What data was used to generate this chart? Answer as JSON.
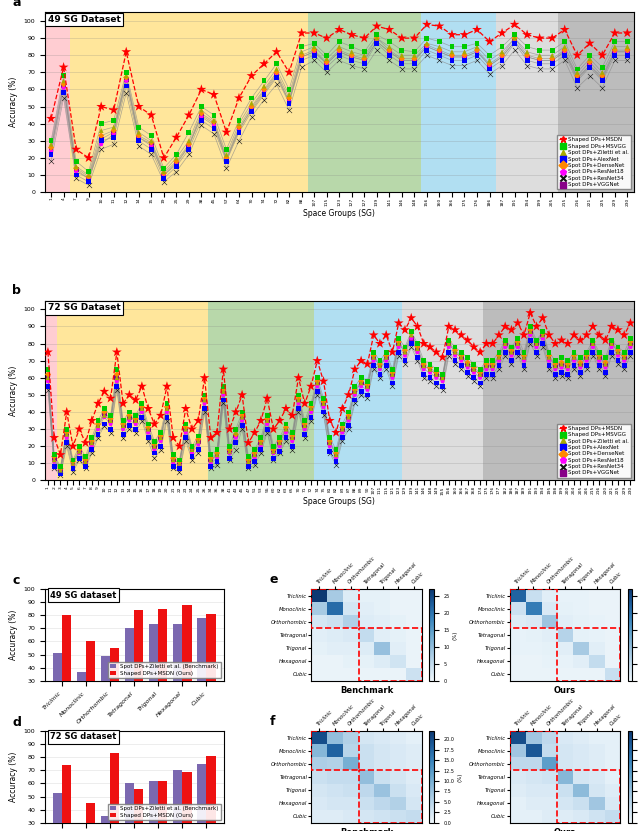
{
  "sg49_labels": [
    "1",
    "4",
    "7",
    "9",
    "10",
    "11",
    "12",
    "14",
    "15",
    "19",
    "25",
    "29",
    "38",
    "45",
    "57",
    "64",
    "70",
    "74",
    "72",
    "82",
    "88",
    "107",
    "115",
    "123",
    "127",
    "127",
    "139",
    "141",
    "146",
    "148",
    "156",
    "160",
    "166",
    "175",
    "176",
    "186",
    "187",
    "191",
    "194",
    "199",
    "205",
    "215",
    "216",
    "221",
    "225",
    "229",
    "230"
  ],
  "sg49_msdn": [
    43,
    73,
    25,
    20,
    50,
    48,
    82,
    50,
    45,
    20,
    32,
    45,
    60,
    57,
    35,
    55,
    68,
    75,
    82,
    70,
    93,
    93,
    90,
    95,
    92,
    90,
    97,
    95,
    90,
    90,
    98,
    97,
    92,
    92,
    95,
    88,
    93,
    98,
    92,
    90,
    90,
    95,
    80,
    87,
    80,
    93,
    93
  ],
  "sg49_msvgg": [
    30,
    68,
    18,
    12,
    40,
    42,
    70,
    38,
    33,
    14,
    22,
    35,
    50,
    45,
    25,
    42,
    55,
    65,
    75,
    60,
    85,
    87,
    80,
    88,
    85,
    82,
    92,
    88,
    83,
    82,
    90,
    88,
    85,
    85,
    87,
    80,
    85,
    92,
    85,
    83,
    83,
    88,
    72,
    80,
    73,
    88,
    88
  ],
  "sg49_ziletti": [
    28,
    65,
    15,
    10,
    36,
    38,
    68,
    35,
    30,
    12,
    20,
    30,
    48,
    42,
    22,
    40,
    52,
    62,
    72,
    57,
    82,
    85,
    78,
    85,
    82,
    80,
    90,
    85,
    80,
    80,
    87,
    85,
    82,
    82,
    85,
    77,
    82,
    90,
    82,
    80,
    80,
    85,
    70,
    78,
    70,
    85,
    85
  ],
  "sg49_alexnet": [
    22,
    58,
    10,
    6,
    30,
    32,
    62,
    30,
    25,
    8,
    15,
    25,
    42,
    37,
    18,
    35,
    47,
    57,
    67,
    52,
    77,
    80,
    73,
    80,
    77,
    75,
    87,
    80,
    75,
    75,
    83,
    80,
    77,
    77,
    80,
    72,
    77,
    87,
    77,
    75,
    75,
    80,
    65,
    73,
    65,
    80,
    80
  ],
  "sg49_densenet": [
    26,
    63,
    14,
    9,
    33,
    36,
    67,
    33,
    29,
    11,
    18,
    28,
    46,
    41,
    20,
    38,
    50,
    60,
    70,
    55,
    80,
    83,
    76,
    83,
    80,
    78,
    90,
    83,
    78,
    78,
    86,
    83,
    80,
    80,
    83,
    75,
    80,
    90,
    80,
    78,
    78,
    83,
    68,
    76,
    68,
    83,
    83
  ],
  "sg49_resnet18": [
    24,
    61,
    12,
    8,
    28,
    34,
    65,
    32,
    27,
    10,
    16,
    27,
    44,
    39,
    19,
    36,
    49,
    59,
    69,
    53,
    79,
    82,
    75,
    82,
    79,
    77,
    88,
    82,
    77,
    77,
    85,
    82,
    79,
    79,
    82,
    74,
    79,
    88,
    79,
    77,
    77,
    82,
    66,
    74,
    66,
    82,
    82
  ],
  "sg49_resnet34": [
    18,
    55,
    8,
    4,
    25,
    28,
    58,
    27,
    22,
    6,
    12,
    22,
    39,
    34,
    14,
    30,
    44,
    54,
    63,
    48,
    73,
    77,
    70,
    77,
    74,
    72,
    83,
    77,
    72,
    72,
    80,
    77,
    74,
    74,
    77,
    69,
    74,
    83,
    74,
    72,
    72,
    77,
    61,
    68,
    61,
    77,
    77
  ],
  "sg49_vggnet": [
    25,
    62,
    13,
    8,
    31,
    35,
    66,
    32,
    28,
    10,
    17,
    27,
    45,
    40,
    19,
    37,
    48,
    58,
    68,
    53,
    79,
    82,
    75,
    82,
    79,
    77,
    88,
    82,
    77,
    77,
    85,
    82,
    79,
    79,
    82,
    74,
    79,
    88,
    79,
    77,
    77,
    82,
    67,
    74,
    67,
    82,
    82
  ],
  "sg72_labels": [
    "1",
    "2",
    "3",
    "4",
    "5",
    "6",
    "7",
    "8",
    "9",
    "10",
    "11",
    "12",
    "13",
    "14",
    "15",
    "16",
    "17",
    "18",
    "19",
    "20",
    "21",
    "22",
    "23",
    "24",
    "25",
    "26",
    "34",
    "36",
    "38",
    "41",
    "43",
    "45",
    "47",
    "51",
    "53",
    "55",
    "60",
    "62",
    "63",
    "65",
    "70",
    "71",
    "72",
    "74",
    "75",
    "81",
    "82",
    "83",
    "87",
    "88",
    "89",
    "90",
    "107",
    "111",
    "115",
    "121",
    "123",
    "129",
    "139",
    "141",
    "146",
    "148",
    "149",
    "155",
    "156",
    "160",
    "166",
    "167",
    "168",
    "174",
    "175",
    "176",
    "177",
    "182",
    "186",
    "187",
    "189",
    "191",
    "193",
    "194",
    "195",
    "198",
    "199",
    "200",
    "204",
    "205",
    "206",
    "215",
    "216",
    "220",
    "221",
    "225",
    "229",
    "230"
  ],
  "sg72_msdn": [
    75,
    25,
    15,
    40,
    20,
    30,
    22,
    35,
    45,
    52,
    48,
    75,
    45,
    50,
    47,
    55,
    42,
    33,
    38,
    55,
    25,
    20,
    42,
    30,
    35,
    60,
    25,
    28,
    65,
    30,
    40,
    50,
    22,
    28,
    35,
    48,
    30,
    35,
    42,
    38,
    60,
    45,
    55,
    70,
    58,
    35,
    28,
    42,
    50,
    65,
    70,
    68,
    85,
    80,
    85,
    75,
    92,
    88,
    95,
    90,
    80,
    78,
    75,
    72,
    90,
    88,
    85,
    82,
    78,
    75,
    80,
    80,
    85,
    90,
    88,
    92,
    85,
    98,
    90,
    95,
    85,
    80,
    82,
    80,
    85,
    82,
    85,
    90,
    85,
    82,
    90,
    88,
    85,
    92
  ],
  "sg72_msvgg": [
    65,
    15,
    8,
    30,
    12,
    20,
    14,
    25,
    35,
    42,
    38,
    65,
    35,
    40,
    38,
    45,
    33,
    23,
    28,
    45,
    15,
    12,
    33,
    20,
    26,
    50,
    15,
    18,
    55,
    20,
    30,
    40,
    14,
    18,
    25,
    38,
    20,
    25,
    33,
    28,
    50,
    35,
    45,
    60,
    48,
    25,
    18,
    33,
    40,
    55,
    60,
    58,
    75,
    70,
    75,
    65,
    83,
    78,
    87,
    80,
    70,
    68,
    65,
    62,
    82,
    78,
    75,
    72,
    68,
    65,
    70,
    70,
    75,
    82,
    78,
    83,
    75,
    90,
    82,
    87,
    75,
    70,
    72,
    70,
    75,
    72,
    75,
    82,
    75,
    72,
    82,
    78,
    75,
    83
  ],
  "sg72_ziletti": [
    60,
    12,
    6,
    27,
    10,
    17,
    11,
    22,
    32,
    38,
    35,
    60,
    32,
    37,
    35,
    42,
    30,
    20,
    25,
    42,
    12,
    10,
    30,
    18,
    23,
    47,
    12,
    15,
    52,
    17,
    28,
    37,
    11,
    15,
    22,
    35,
    17,
    22,
    30,
    25,
    47,
    32,
    42,
    57,
    45,
    22,
    15,
    30,
    37,
    52,
    57,
    55,
    72,
    67,
    72,
    62,
    80,
    75,
    85,
    77,
    67,
    65,
    62,
    60,
    80,
    75,
    72,
    68,
    65,
    62,
    67,
    67,
    72,
    80,
    75,
    80,
    72,
    87,
    80,
    85,
    72,
    67,
    68,
    67,
    72,
    68,
    72,
    80,
    72,
    68,
    80,
    75,
    72,
    80
  ],
  "sg72_alexnet": [
    55,
    8,
    4,
    22,
    7,
    13,
    8,
    18,
    27,
    33,
    30,
    55,
    27,
    32,
    30,
    37,
    25,
    16,
    20,
    37,
    8,
    7,
    25,
    14,
    18,
    42,
    8,
    11,
    47,
    13,
    22,
    32,
    8,
    11,
    18,
    30,
    13,
    17,
    25,
    20,
    42,
    27,
    37,
    52,
    40,
    17,
    11,
    25,
    32,
    47,
    52,
    50,
    67,
    62,
    67,
    57,
    75,
    70,
    80,
    72,
    62,
    60,
    57,
    55,
    75,
    70,
    67,
    63,
    60,
    57,
    62,
    62,
    67,
    75,
    70,
    75,
    67,
    82,
    75,
    80,
    67,
    62,
    63,
    62,
    67,
    63,
    67,
    75,
    67,
    63,
    75,
    70,
    67,
    75
  ],
  "sg72_densenet": [
    62,
    14,
    7,
    28,
    11,
    18,
    12,
    23,
    33,
    40,
    36,
    62,
    33,
    38,
    36,
    43,
    31,
    21,
    26,
    43,
    13,
    11,
    31,
    19,
    24,
    48,
    13,
    16,
    53,
    18,
    27,
    38,
    12,
    16,
    23,
    36,
    18,
    23,
    31,
    26,
    48,
    33,
    43,
    58,
    46,
    23,
    16,
    31,
    38,
    53,
    58,
    56,
    73,
    68,
    73,
    63,
    81,
    76,
    86,
    78,
    68,
    66,
    63,
    61,
    81,
    76,
    73,
    69,
    66,
    63,
    68,
    68,
    73,
    81,
    76,
    81,
    73,
    88,
    81,
    86,
    73,
    68,
    69,
    68,
    73,
    69,
    73,
    81,
    73,
    69,
    81,
    76,
    73,
    81
  ],
  "sg72_resnet18": [
    58,
    11,
    5,
    25,
    9,
    16,
    10,
    20,
    30,
    37,
    33,
    58,
    30,
    35,
    33,
    40,
    28,
    18,
    23,
    40,
    10,
    9,
    28,
    16,
    21,
    45,
    10,
    13,
    50,
    16,
    25,
    35,
    10,
    13,
    20,
    33,
    16,
    20,
    28,
    23,
    45,
    30,
    40,
    55,
    43,
    20,
    13,
    28,
    35,
    50,
    55,
    53,
    70,
    65,
    70,
    60,
    78,
    73,
    83,
    75,
    65,
    63,
    60,
    58,
    78,
    73,
    70,
    66,
    63,
    60,
    65,
    65,
    70,
    78,
    73,
    78,
    70,
    85,
    78,
    83,
    70,
    65,
    66,
    65,
    70,
    66,
    70,
    78,
    70,
    66,
    78,
    73,
    70,
    78
  ],
  "sg72_resnet34": [
    53,
    7,
    3,
    20,
    5,
    12,
    7,
    16,
    25,
    32,
    28,
    53,
    25,
    30,
    28,
    35,
    23,
    13,
    18,
    35,
    7,
    5,
    23,
    12,
    16,
    40,
    7,
    9,
    45,
    12,
    18,
    30,
    7,
    9,
    16,
    28,
    12,
    16,
    23,
    18,
    40,
    25,
    35,
    50,
    38,
    16,
    9,
    23,
    30,
    45,
    50,
    48,
    65,
    60,
    65,
    55,
    73,
    68,
    78,
    70,
    60,
    58,
    55,
    53,
    73,
    68,
    65,
    61,
    58,
    55,
    60,
    60,
    65,
    73,
    68,
    73,
    65,
    80,
    73,
    78,
    65,
    60,
    61,
    60,
    65,
    61,
    65,
    73,
    65,
    61,
    73,
    68,
    65,
    73
  ],
  "sg72_vggnet": [
    60,
    13,
    6,
    27,
    10,
    17,
    11,
    22,
    32,
    39,
    35,
    60,
    32,
    37,
    35,
    42,
    30,
    20,
    25,
    42,
    12,
    10,
    30,
    18,
    23,
    47,
    12,
    15,
    52,
    17,
    26,
    37,
    11,
    15,
    22,
    35,
    17,
    22,
    30,
    25,
    47,
    32,
    42,
    57,
    45,
    22,
    15,
    30,
    37,
    52,
    57,
    55,
    72,
    67,
    72,
    62,
    80,
    75,
    83,
    77,
    67,
    65,
    62,
    60,
    80,
    75,
    72,
    68,
    65,
    62,
    67,
    67,
    72,
    80,
    75,
    80,
    72,
    87,
    80,
    85,
    72,
    67,
    68,
    67,
    72,
    68,
    72,
    80,
    72,
    68,
    80,
    75,
    72,
    80
  ],
  "bar_c49_bench": [
    51,
    37,
    49,
    70,
    73,
    73,
    78
  ],
  "bar_c49_ours": [
    80,
    60,
    55,
    84,
    85,
    88,
    81
  ],
  "bar_c72_bench": [
    53,
    30,
    35,
    60,
    62,
    70,
    75
  ],
  "bar_c72_ours": [
    74,
    45,
    83,
    56,
    62,
    69,
    81
  ],
  "crystal_systems": [
    "Triclinic",
    "Monoclinic",
    "Orthorhombic",
    "Tetragonal",
    "Trigonal",
    "Hexagonal",
    "Cubic"
  ],
  "heatmap_e_bench": [
    [
      27.0,
      8.0,
      2.0,
      1.0,
      1.0,
      0.5,
      0.5
    ],
    [
      8.0,
      21.0,
      3.0,
      1.5,
      1.0,
      0.5,
      0.5
    ],
    [
      3.0,
      4.0,
      7.0,
      2.0,
      1.5,
      1.0,
      0.5
    ],
    [
      1.5,
      2.0,
      2.5,
      5.0,
      1.5,
      1.0,
      0.5
    ],
    [
      1.0,
      1.5,
      1.5,
      2.0,
      9.5,
      1.5,
      0.5
    ],
    [
      0.5,
      0.5,
      1.0,
      1.0,
      2.0,
      3.5,
      0.5
    ],
    [
      0.5,
      0.5,
      0.5,
      0.5,
      0.5,
      0.5,
      4.0
    ]
  ],
  "heatmap_e_ours": [
    [
      22.0,
      4.5,
      1.5,
      0.8,
      0.8,
      0.5,
      0.5
    ],
    [
      4.0,
      19.0,
      2.5,
      1.0,
      0.8,
      0.5,
      0.5
    ],
    [
      2.0,
      2.5,
      9.0,
      1.5,
      1.0,
      0.8,
      0.5
    ],
    [
      0.8,
      1.0,
      1.5,
      6.5,
      1.0,
      0.8,
      0.5
    ],
    [
      0.8,
      0.8,
      1.0,
      1.5,
      8.0,
      1.5,
      0.5
    ],
    [
      0.5,
      0.5,
      0.8,
      0.8,
      1.5,
      5.0,
      0.5
    ],
    [
      0.5,
      0.5,
      0.5,
      0.5,
      0.5,
      0.5,
      4.5
    ]
  ],
  "heatmap_f_bench": [
    [
      20.0,
      8.0,
      5.5,
      2.5,
      2.0,
      1.5,
      1.0
    ],
    [
      9.0,
      18.0,
      5.0,
      3.5,
      2.5,
      2.0,
      1.5
    ],
    [
      6.0,
      5.5,
      10.0,
      3.5,
      2.5,
      2.0,
      1.5
    ],
    [
      3.5,
      4.0,
      4.0,
      8.0,
      3.5,
      2.5,
      1.5
    ],
    [
      2.5,
      3.0,
      3.5,
      4.5,
      7.5,
      3.5,
      2.0
    ],
    [
      2.0,
      2.5,
      2.5,
      3.5,
      4.5,
      5.5,
      2.5
    ],
    [
      1.5,
      1.5,
      2.0,
      2.5,
      3.0,
      3.5,
      4.0
    ]
  ],
  "heatmap_f_ours": [
    [
      20.0,
      7.0,
      4.5,
      2.0,
      1.5,
      1.0,
      1.0
    ],
    [
      7.0,
      19.0,
      4.0,
      2.5,
      2.0,
      1.5,
      1.0
    ],
    [
      4.5,
      4.5,
      12.0,
      2.5,
      2.0,
      1.5,
      1.0
    ],
    [
      2.0,
      2.5,
      3.0,
      9.0,
      2.5,
      2.0,
      1.0
    ],
    [
      1.5,
      2.0,
      2.0,
      3.5,
      8.5,
      2.5,
      1.5
    ],
    [
      1.0,
      1.5,
      1.5,
      2.5,
      3.5,
      7.0,
      2.0
    ],
    [
      1.0,
      1.0,
      1.5,
      1.5,
      2.0,
      3.0,
      4.0
    ]
  ],
  "bg_colors_49": [
    "#FFB3BA",
    "#FFD966",
    "#FFD966",
    "#93C47D",
    "#87CEEB",
    "#CCCCCC",
    "#999999"
  ],
  "bg_regions_49_start": [
    0,
    2,
    9,
    21,
    30,
    36,
    41
  ],
  "bg_regions_49_end": [
    2,
    9,
    21,
    30,
    36,
    41,
    47
  ],
  "bg_colors_72": [
    "#FFB3BA",
    "#FFD966",
    "#93C47D",
    "#87CEEB",
    "#CCCCCC",
    "#999999"
  ],
  "bg_regions_72_start": [
    0,
    2,
    26,
    43,
    57,
    70
  ],
  "bg_regions_72_end": [
    2,
    26,
    43,
    57,
    70,
    94
  ]
}
